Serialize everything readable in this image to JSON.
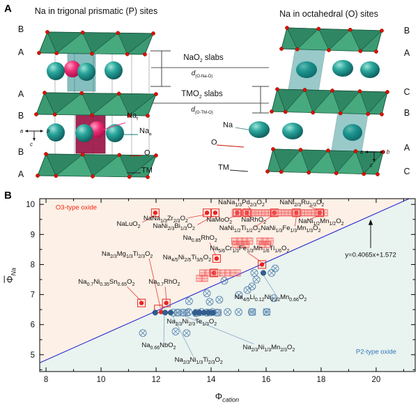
{
  "figure": {
    "panel_a_letter": "A",
    "panel_b_letter": "B"
  },
  "panel_a": {
    "left_title": "Na in trigonal prismatic (P) sites",
    "right_title": "Na in octahedral (O) sites",
    "left_layer_labels": [
      "B",
      "A",
      "A",
      "B",
      "B",
      "A"
    ],
    "right_layer_labels": [
      "B",
      "A",
      "C",
      "B",
      "A",
      "C"
    ],
    "left_atom_labels": [
      {
        "text": "Na~f~",
        "leader_color": "#e8367d"
      },
      {
        "text": "Na~e~",
        "leader_color": "#0d7c7c"
      },
      {
        "text": "O",
        "leader_color": "#cc1100"
      },
      {
        "text": "TM",
        "leader_color": "#222222"
      }
    ],
    "right_atom_labels": [
      {
        "text": "Na",
        "leader_color": "#5f8f8f"
      },
      {
        "text": "O",
        "leader_color": "#cc1100"
      },
      {
        "text": "TM",
        "leader_color": "#222222"
      }
    ],
    "center_annotations": {
      "nao2_slabs": "NaO~2~ slabs",
      "d_o_na_o": "d~(O-Na-O)~",
      "tmo2_slabs": "TMO~2~ slabs",
      "d_o_tm_o": "d~(O-TM-O)~"
    },
    "axis_letters": {
      "a": "a",
      "b": "b",
      "c": "c"
    },
    "colors": {
      "slab_green": "#2f8663",
      "oxygen_red": "#e11000",
      "na_teal": "#0e7f7f",
      "na_pink": "#ee2d75",
      "prism_maroon": "#9c1748"
    }
  },
  "chart_data": {
    "type": "scatter",
    "xlabel": "Φ~cation~",
    "ylabel": "Φ~Na~",
    "xlim": [
      7.77,
      21.42
    ],
    "ylim": [
      4.44,
      10.19
    ],
    "xticks": [
      8,
      10,
      12,
      14,
      16,
      18,
      20
    ],
    "xticks_minor": [
      9,
      11,
      13,
      15,
      17,
      19,
      21
    ],
    "yticks": [
      5,
      6,
      7,
      8,
      9,
      10
    ],
    "yticks_minor": [
      4.5,
      5.5,
      6.5,
      7.5,
      8.5,
      9.5
    ],
    "grid": false,
    "boundary_line": {
      "equation": "y=0.4065x+1.572",
      "slope": 0.4065,
      "intercept": 1.572,
      "color": "#2a2ad0"
    },
    "equation_arrow": {
      "x": 19.8,
      "y_from": 8.55,
      "y_to": 9.5
    },
    "regions": [
      {
        "name": "O3-type oxide",
        "position": "above-line",
        "bg_color": "#fdf0e6",
        "label_color": "#f42410",
        "label_x": 8.35,
        "label_y": 9.9
      },
      {
        "name": "P2-type oxide",
        "position": "below-line",
        "bg_color": "#e9f3ef",
        "label_color": "#3377bb",
        "label_x": 20.0,
        "label_y": 5.1
      }
    ],
    "series": [
      {
        "name": "O3 compounds (filled circle in square)",
        "marker": "red-boxed-dot",
        "color": "#e81010",
        "points": [
          [
            11.97,
            9.72
          ],
          [
            13.85,
            9.72
          ],
          [
            14.15,
            9.72
          ],
          [
            14.95,
            9.72
          ],
          [
            15.3,
            9.72
          ],
          [
            16.3,
            9.72
          ],
          [
            17.1,
            9.72
          ],
          [
            17.95,
            9.72
          ],
          [
            14.2,
            8.2
          ],
          [
            15.85,
            8.0
          ],
          [
            14.1,
            7.72
          ],
          [
            11.47,
            6.72
          ],
          [
            12.37,
            6.72
          ]
        ]
      },
      {
        "name": "O3 compound at boundary (dot)",
        "marker": "red-dot",
        "color": "#e81010",
        "points": [
          [
            12.18,
            6.42
          ]
        ]
      },
      {
        "name": "O3 open square",
        "marker": "red-open-square",
        "color": "#e81010",
        "points": [
          [
            12.08,
            6.52
          ]
        ]
      },
      {
        "name": "O3 hatched squares",
        "marker": "red-hatch",
        "color": "#ef5050",
        "points": [
          [
            14.88,
            9.72
          ],
          [
            15.0,
            9.72
          ],
          [
            15.12,
            9.72
          ],
          [
            15.24,
            9.72
          ],
          [
            15.36,
            9.72
          ],
          [
            15.48,
            9.72
          ],
          [
            15.6,
            9.72
          ],
          [
            15.72,
            9.72
          ],
          [
            15.84,
            9.72
          ],
          [
            15.96,
            9.72
          ],
          [
            16.08,
            9.72
          ],
          [
            16.2,
            9.72
          ],
          [
            16.32,
            9.72
          ],
          [
            16.44,
            9.72
          ],
          [
            16.56,
            9.72
          ],
          [
            16.68,
            9.72
          ],
          [
            16.8,
            9.72
          ],
          [
            16.92,
            9.72
          ],
          [
            17.04,
            9.72
          ],
          [
            17.16,
            9.72
          ],
          [
            17.28,
            9.72
          ],
          [
            17.4,
            9.72
          ],
          [
            17.52,
            9.72
          ],
          [
            17.64,
            9.72
          ],
          [
            17.76,
            9.72
          ],
          [
            17.88,
            9.72
          ],
          [
            18.0,
            9.72
          ],
          [
            18.12,
            9.72
          ],
          [
            14.86,
            8.78
          ],
          [
            15.04,
            8.78
          ],
          [
            15.22,
            8.78
          ],
          [
            15.4,
            8.78
          ],
          [
            14.9,
            8.66
          ],
          [
            15.08,
            8.66
          ],
          [
            15.26,
            8.66
          ],
          [
            15.78,
            8.78
          ],
          [
            15.96,
            8.78
          ],
          [
            16.14,
            8.78
          ],
          [
            15.87,
            8.66
          ],
          [
            16.05,
            8.66
          ],
          [
            13.7,
            7.72
          ],
          [
            13.88,
            7.72
          ],
          [
            14.06,
            7.72
          ],
          [
            14.24,
            7.72
          ],
          [
            14.42,
            7.72
          ],
          [
            14.6,
            7.72
          ],
          [
            14.78,
            7.72
          ],
          [
            14.95,
            7.72
          ],
          [
            13.58,
            7.54
          ],
          [
            13.76,
            7.54
          ]
        ]
      },
      {
        "name": "P2 compounds (circle-x)",
        "marker": "blue-x",
        "color": "#4878a8",
        "points": [
          [
            12.62,
            6.4
          ],
          [
            12.78,
            6.4
          ],
          [
            12.98,
            6.4
          ],
          [
            13.18,
            6.42
          ],
          [
            13.45,
            6.38
          ],
          [
            13.65,
            6.42
          ],
          [
            13.85,
            6.4
          ],
          [
            14.05,
            6.42
          ],
          [
            14.22,
            6.4
          ],
          [
            14.6,
            6.42
          ],
          [
            15.0,
            6.42
          ],
          [
            15.48,
            6.42
          ],
          [
            16.02,
            6.42
          ],
          [
            13.2,
            6.78
          ],
          [
            13.85,
            7.04
          ],
          [
            13.95,
            6.76
          ],
          [
            14.3,
            6.83
          ],
          [
            14.48,
            7.46
          ],
          [
            15.01,
            6.99
          ],
          [
            15.32,
            7.15
          ],
          [
            15.49,
            7.27
          ],
          [
            15.65,
            7.5
          ],
          [
            15.57,
            7.72
          ],
          [
            16.2,
            7.72
          ],
          [
            16.33,
            7.87
          ],
          [
            16.28,
            6.88
          ],
          [
            11.52,
            5.72
          ],
          [
            12.71,
            5.77
          ],
          [
            13.11,
            5.72
          ]
        ]
      },
      {
        "name": "P2 hatched squares",
        "marker": "blue-hatch",
        "color": "#4878a8",
        "points": [
          [
            12.8,
            6.4
          ],
          [
            13.1,
            6.4
          ],
          [
            13.5,
            6.4
          ],
          [
            13.9,
            6.4
          ],
          [
            14.25,
            6.4
          ],
          [
            15.5,
            6.42
          ],
          [
            16.02,
            6.42
          ]
        ]
      },
      {
        "name": "P2 filled circles",
        "marker": "blue-dot",
        "color": "#1e4f86",
        "points": [
          [
            11.97,
            6.4
          ],
          [
            12.33,
            6.4
          ],
          [
            12.53,
            6.4
          ],
          [
            13.42,
            6.4
          ],
          [
            13.58,
            6.4
          ],
          [
            13.74,
            6.4
          ],
          [
            13.9,
            6.4
          ],
          [
            14.06,
            6.4
          ],
          [
            15.9,
            7.72
          ]
        ]
      }
    ],
    "annotations": [
      {
        "text": "NaLuO~2~",
        "x": 11.0,
        "y": 9.3,
        "leader": [
          11.5,
          9.4,
          11.95,
          9.63
        ],
        "leader_color": "#e04040"
      },
      {
        "text": "NaNa~1/3~Zr~2/3~O~2~",
        "x": 12.35,
        "y": 9.5,
        "leader": [
          13.15,
          9.55,
          13.8,
          9.66
        ],
        "leader_color": "#e04040"
      },
      {
        "text": "NaNi~2/3~Bi~1/3~O~2~",
        "x": 12.65,
        "y": 9.25,
        "leader": [
          13.5,
          9.32,
          14.1,
          9.62
        ],
        "leader_color": "#e04040"
      },
      {
        "text": "NaMoO~2~",
        "x": 14.3,
        "y": 9.45,
        "leader": [
          14.65,
          9.53,
          14.92,
          9.64
        ],
        "leader_color": "#e04040"
      },
      {
        "text": "NaRhO~2~",
        "x": 15.55,
        "y": 9.45,
        "leader": [
          15.45,
          9.53,
          15.32,
          9.64
        ],
        "leader_color": "#e04040"
      },
      {
        "text": "NaNa~1/3~Pd~2/3~O~2~",
        "x": 15.1,
        "y": 10.02,
        "leader": [
          15.35,
          9.94,
          15.45,
          9.8
        ],
        "leader_color": "#e04040"
      },
      {
        "text": "NaNi~2/3~Ru~1/3~O~2~",
        "x": 17.3,
        "y": 10.02,
        "leader": [
          17.55,
          9.94,
          17.9,
          9.8
        ],
        "leader_color": "#e04040"
      },
      {
        "text": "NaNi~1/2~Ti~1/2~O~2~",
        "x": 15.05,
        "y": 9.17,
        "leader": [
          15.6,
          9.25,
          16.25,
          9.64
        ],
        "leader_color": "#e04040"
      },
      {
        "text": "NaNi~1/3~Fe~1/3~Mn~1/3~O~2~",
        "x": 16.9,
        "y": 9.17,
        "leader": [
          17.05,
          9.27,
          17.1,
          9.62
        ],
        "leader_color": "#e04040"
      },
      {
        "text": "NaNi~1/2~Mn~1/2~O~2~",
        "x": 18.0,
        "y": 9.4,
        "leader": [
          17.55,
          9.48,
          17.93,
          9.64
        ],
        "leader_color": "#e04040"
      },
      {
        "text": "Na~0.85~RhO~2~",
        "x": 13.6,
        "y": 8.85,
        "leader": [
          13.95,
          8.73,
          14.17,
          8.3
        ],
        "leader_color": "#e04040"
      },
      {
        "text": "Na~5/6~Cr~1/3~Fe~1/3~Mn~1/6~Ti~1/6~O~2~",
        "x": 15.4,
        "y": 8.5,
        "leader": [
          15.35,
          8.38,
          15.8,
          8.1
        ],
        "leader_color": "#e04040"
      },
      {
        "text": "Na~4/5~Ni~2/5~Ti~3/5~O~2~",
        "x": 14.0,
        "y": 8.2,
        "align": "right"
      },
      {
        "text": "Na~2/3~Mg~1/3~Ti~2/3~O~2~",
        "x": 10.95,
        "y": 8.32,
        "leader": [
          11.75,
          8.2,
          12.16,
          6.55
        ],
        "leader_color": "#e04040"
      },
      {
        "text": "Na~0.7~Ni~0.35~Sn~0.65~O~2~",
        "x": 10.2,
        "y": 7.38,
        "leader": [
          10.95,
          7.26,
          11.44,
          6.8
        ],
        "leader_color": "#e04040"
      },
      {
        "text": "Na~0.7~RhO~2~",
        "x": 12.3,
        "y": 7.38,
        "leader": [
          12.33,
          7.26,
          12.38,
          6.8
        ],
        "leader_color": "#e04040"
      },
      {
        "text": "Na~4/5~Li~0.12~Ni~0.22~Mn~0.66~O~2~",
        "x": 14.85,
        "y": 6.87,
        "align": "left",
        "leader": [
          15.92,
          7.62,
          16.35,
          7.0
        ],
        "leader_color": "#85a8c8"
      },
      {
        "text": "Na~2/3~Ni~2/3~Te~1/3~O~2~",
        "x": 13.3,
        "y": 6.07
      },
      {
        "text": "Na~0.66~NbO~2~",
        "x": 12.1,
        "y": 5.27,
        "leader": [
          12.3,
          6.3,
          12.28,
          5.43
        ],
        "leader_color": "#85a8c8"
      },
      {
        "text": "Na~2/3~Ni~1/3~Mn~2/3~O~2~",
        "x": 16.1,
        "y": 5.2,
        "leader": [
          13.0,
          6.3,
          15.55,
          5.36
        ],
        "leader_color": "#85a8c8"
      },
      {
        "text": "Na~2/3~Ni~1/3~Ti~2/3~O~2~",
        "x": 13.55,
        "y": 4.78,
        "leader": [
          12.6,
          6.3,
          13.35,
          4.95
        ],
        "leader_color": "#85a8c8"
      },
      {
        "text": "y=0.4065x+1.572",
        "x": 19.8,
        "y": 8.32
      }
    ]
  }
}
